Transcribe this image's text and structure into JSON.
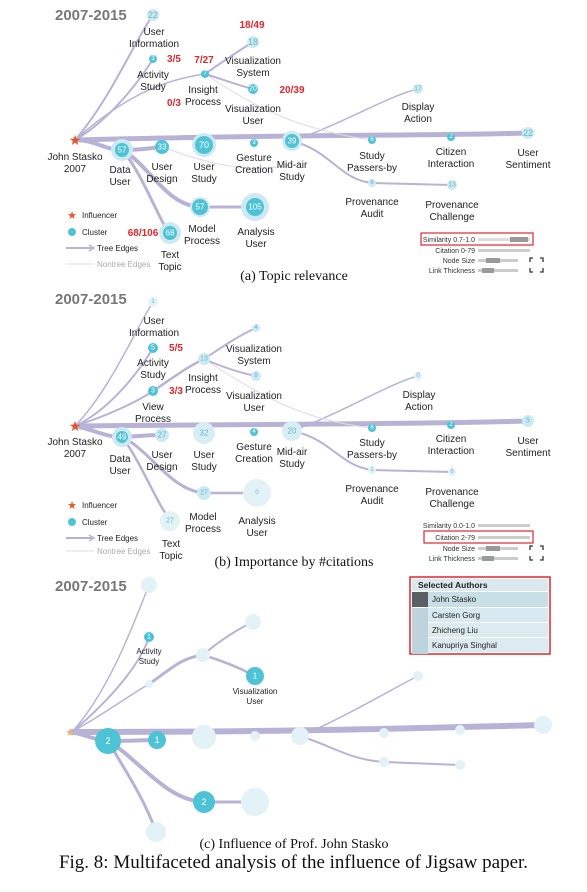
{
  "year_range": "2007-2015",
  "root": {
    "name_line1": "John Stasko",
    "name_line2": "2007"
  },
  "colors": {
    "edge": "#b8b3d6",
    "node": "#4fc3d6",
    "node_light": "#cde9f1",
    "red": "#e0262d",
    "star": "#e8542a"
  },
  "panel_a": {
    "caption": "(a) Topic relevance",
    "labels": {
      "user_information": [
        "User",
        "Information"
      ],
      "activity_study": [
        "Activity",
        "Study"
      ],
      "insight_process": [
        "Insight",
        "Process"
      ],
      "visualization_system": [
        "Visualization",
        "System"
      ],
      "visualization_user": [
        "Visualization",
        "User"
      ],
      "data_user": [
        "Data",
        "User"
      ],
      "user_design": [
        "User",
        "Design"
      ],
      "user_study": [
        "User",
        "Study"
      ],
      "gesture_creation": [
        "Gesture",
        "Creation"
      ],
      "mid_air_study": [
        "Mid-air",
        "Study"
      ],
      "study_passers_by": [
        "Study",
        "Passers-by"
      ],
      "display_action": [
        "Display",
        "Action"
      ],
      "citizen_interaction": [
        "Citizen",
        "Interaction"
      ],
      "user_sentiment": [
        "User",
        "Sentiment"
      ],
      "provenance_audit": [
        "Provenance",
        "Audit"
      ],
      "provenance_challenge": [
        "Provenance",
        "Challenge"
      ],
      "model_process": [
        "Model",
        "Process"
      ],
      "analysis_user": [
        "Analysis",
        "User"
      ],
      "text_topic": [
        "Text",
        "Topic"
      ]
    },
    "node_values": {
      "user_information": "22",
      "activity_study": "3",
      "insight_process": "7",
      "visualization_system": "18",
      "visualization_user": "20",
      "zero": "0",
      "data_user": "57",
      "user_design": "33",
      "user_study": "70",
      "gesture_creation": "3",
      "mid_air_study": "39",
      "study_passers_by": "6",
      "citizen_interaction": "2",
      "user_sentiment": "22",
      "display_action": "17",
      "provenance_audit": "6",
      "provenance_challenge": "13",
      "model_process": "57",
      "analysis_user": "105",
      "text_topic": "68"
    },
    "red_labels": {
      "visualization_system": "18/49",
      "activity_study": "3/5",
      "insight_process": "7/27",
      "zero": "0/3",
      "visualization_user": "20/39",
      "text_topic": "68/106"
    },
    "legend": {
      "influencer": "Influencer",
      "cluster": "Cluster",
      "tree_edges": "Tree Edges",
      "nontree_edges": "Nontree Edges"
    },
    "controls": {
      "similarity": "Similarity 0.7-1.0",
      "citation": "Citation 0-79",
      "node_size": "Node Size",
      "link_thickness": "Link Thickness"
    }
  },
  "panel_b": {
    "caption": "(b) Importance by #citations",
    "labels": {
      "user_information": [
        "User",
        "Information"
      ],
      "activity_study": [
        "Activity",
        "Study"
      ],
      "view_process": [
        "View",
        "Process"
      ],
      "insight_process": [
        "Insight",
        "Process"
      ],
      "visualization_system": [
        "Visualization",
        "System"
      ],
      "visualization_user": [
        "Visualization",
        "User"
      ],
      "data_user": [
        "Data",
        "User"
      ],
      "user_design": [
        "User",
        "Design"
      ],
      "user_study": [
        "User",
        "Study"
      ],
      "gesture_creation": [
        "Gesture",
        "Creation"
      ],
      "mid_air_study": [
        "Mid-air",
        "Study"
      ],
      "study_passers_by": [
        "Study",
        "Passers-by"
      ],
      "display_action": [
        "Display",
        "Action"
      ],
      "citizen_interaction": [
        "Citizen",
        "Interaction"
      ],
      "user_sentiment": [
        "User",
        "Sentiment"
      ],
      "provenance_audit": [
        "Provenance",
        "Audit"
      ],
      "provenance_challenge": [
        "Provenance",
        "Challenge"
      ],
      "model_process": [
        "Model",
        "Process"
      ],
      "analysis_user": [
        "Analysis",
        "User"
      ],
      "text_topic": [
        "Text",
        "Topic"
      ]
    },
    "node_values": {
      "user_information": "1",
      "activity_study": "5",
      "view_process": "3",
      "insight_process": "13",
      "visualization_system": "4",
      "visualization_user": "8",
      "data_user": "49",
      "user_design": "27",
      "user_study": "32",
      "gesture_creation": "4",
      "mid_air_study": "20",
      "study_passers_by": "6",
      "citizen_interaction": "2",
      "user_sentiment": "5",
      "display_action": "0",
      "provenance_audit": "1",
      "provenance_challenge": "6",
      "model_process": "27",
      "analysis_user": "0",
      "text_topic": "27"
    },
    "red_labels": {
      "activity_study": "5/5",
      "view_process": "3/3"
    },
    "legend": {
      "influencer": "Influencer",
      "cluster": "Cluster",
      "tree_edges": "Tree Edges",
      "nontree_edges": "Nontree Edges"
    },
    "controls": {
      "similarity": "Similarity 0.0-1.0",
      "citation": "Citation 2-79",
      "node_size": "Node Size",
      "link_thickness": "Link Thickness"
    }
  },
  "panel_c": {
    "caption": "(c) Influence of Prof. John Stasko",
    "labels": {
      "activity_study": [
        "Activity",
        "Study"
      ],
      "visualization_user": [
        "Visualization",
        "User"
      ]
    },
    "node_values": {
      "activity_study": "1",
      "visualization_user": "1",
      "data_user": "2",
      "user_design": "1",
      "model_process": "2"
    },
    "selected_authors": {
      "title": "Selected Authors",
      "items": [
        "John Stasko",
        "Carsten Gorg",
        "Zhicheng Liu",
        "Kanupriya Singhal"
      ]
    }
  },
  "figure_caption": "Fig. 8: Multifaceted analysis of the influence of Jigsaw paper."
}
